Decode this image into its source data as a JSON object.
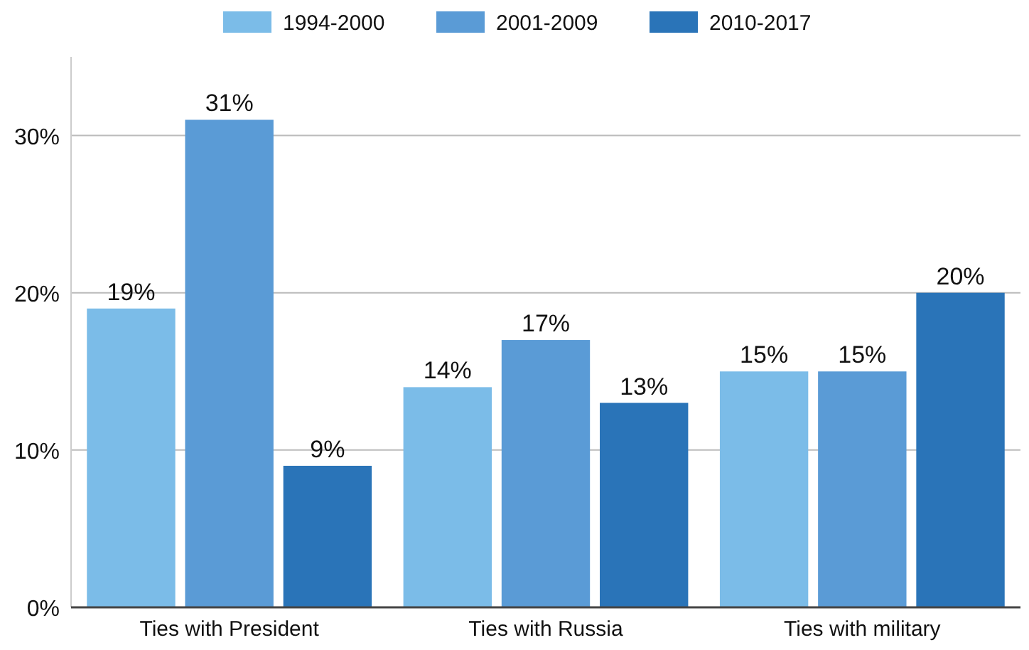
{
  "chart_data": {
    "type": "bar",
    "categories": [
      "Ties with President",
      "Ties with Russia",
      "Ties with military"
    ],
    "series": [
      {
        "name": "1994-2000",
        "color": "#7bbce8",
        "values": [
          19,
          14,
          15
        ],
        "value_labels": [
          "19%",
          "14%",
          "15%"
        ]
      },
      {
        "name": "2001-2009",
        "color": "#5a9bd6",
        "values": [
          31,
          17,
          15
        ],
        "value_labels": [
          "31%",
          "17%",
          "15%"
        ]
      },
      {
        "name": "2010-2017",
        "color": "#2a74b8",
        "values": [
          9,
          13,
          20
        ],
        "value_labels": [
          "9%",
          "13%",
          "20%"
        ]
      }
    ],
    "ylim": [
      0,
      35
    ],
    "yticks": [
      {
        "value": 0,
        "label": "0%"
      },
      {
        "value": 10,
        "label": "10%"
      },
      {
        "value": 20,
        "label": "20%"
      },
      {
        "value": 30,
        "label": "30%"
      }
    ],
    "grid": "y",
    "legend": "top"
  }
}
